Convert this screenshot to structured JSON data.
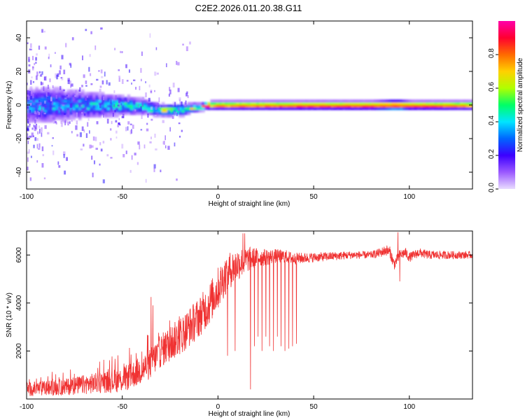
{
  "figure": {
    "title": "C2E2.2026.011.20.38.G11"
  },
  "chart_data": [
    {
      "type": "heatmap",
      "xlabel": "Height of straight line (km)",
      "ylabel": "Frequency (Hz)",
      "xlim": [
        -100,
        133
      ],
      "ylim": [
        -50,
        50
      ],
      "xticks": [
        -100,
        -50,
        0,
        50,
        100
      ],
      "yticks": [
        -40,
        -20,
        0,
        20,
        40
      ],
      "grid": false,
      "colorbar": {
        "label": "Normalized spectral amplitude",
        "range": [
          0,
          1
        ],
        "ticks": [
          "0.0",
          "0.2",
          "0.4",
          "0.6",
          "0.8"
        ],
        "colors": [
          "#e9dcff",
          "#9b59ff",
          "#3c00ff",
          "#0066ff",
          "#00e5ff",
          "#00ff66",
          "#b0ff00",
          "#ffd000",
          "#ff6a00",
          "#ff0030",
          "#ff00aa"
        ]
      },
      "ridge": {
        "x": [
          -100,
          -90,
          -80,
          -70,
          -60,
          -50,
          -40,
          -30,
          -25,
          -20,
          -15,
          -10,
          -5,
          0,
          5,
          10,
          15,
          20,
          30,
          40,
          50,
          60,
          70,
          80,
          90,
          95,
          100,
          105,
          110,
          120,
          133
        ],
        "y": [
          0,
          0,
          0,
          0,
          0,
          0,
          -1,
          -3,
          -3,
          -3,
          -2,
          -1,
          0,
          0,
          0,
          0,
          0,
          0,
          0,
          0,
          0,
          0,
          0,
          0,
          0,
          0,
          0,
          0,
          0,
          0,
          0
        ],
        "amplitude": [
          0.3,
          0.35,
          0.3,
          0.35,
          0.38,
          0.4,
          0.42,
          0.5,
          0.55,
          0.55,
          0.6,
          0.65,
          0.75,
          0.9,
          0.85,
          0.9,
          0.9,
          0.9,
          0.92,
          0.95,
          0.95,
          0.95,
          0.95,
          0.95,
          0.9,
          0.9,
          0.95,
          0.95,
          0.95,
          0.9,
          0.85
        ],
        "halfwidth_hz": [
          9,
          9,
          8,
          7,
          6,
          5,
          4,
          3,
          3,
          3,
          2.5,
          2,
          2,
          2,
          2,
          2,
          2,
          2,
          2,
          2,
          2,
          2,
          2,
          2,
          2.5,
          2.5,
          2,
          2,
          2,
          2,
          2
        ]
      }
    },
    {
      "type": "line",
      "xlabel": "Height of straight line (km)",
      "ylabel": "SNR (10 * v/v)",
      "xlim": [
        -100,
        133
      ],
      "ylim": [
        0,
        7000
      ],
      "xticks": [
        -100,
        -50,
        0,
        50,
        100
      ],
      "yticks": [
        2000,
        4000,
        6000
      ],
      "grid": false,
      "series": [
        {
          "color": "#f03232",
          "envelope": {
            "x": [
              -100,
              -90,
              -80,
              -70,
              -60,
              -50,
              -45,
              -40,
              -35,
              -30,
              -25,
              -20,
              -15,
              -10,
              -5,
              0,
              5,
              10,
              15,
              20,
              25,
              30,
              35,
              40,
              50,
              60,
              70,
              80,
              85,
              88,
              90,
              92,
              95,
              98,
              100,
              105,
              110,
              120,
              133
            ],
            "y": [
              400,
              450,
              500,
              600,
              700,
              800,
              1000,
              1200,
              1500,
              2000,
              2300,
              2600,
              3000,
              3400,
              3900,
              4600,
              5300,
              5600,
              5800,
              5900,
              5900,
              5950,
              5950,
              5850,
              5900,
              5950,
              6000,
              6000,
              6100,
              6200,
              6100,
              5600,
              6000,
              6100,
              5900,
              6100,
              6000,
              6000,
              6000
            ]
          },
          "noise": {
            "x": [
              -100,
              -80,
              -60,
              -40,
              -20,
              0,
              10,
              20,
              30,
              40,
              50,
              80,
              90,
              100,
              133
            ],
            "amplitude": [
              300,
              350,
              450,
              600,
              800,
              900,
              700,
              400,
              300,
              250,
              200,
              150,
              250,
              200,
              150
            ]
          },
          "dropouts": {
            "x": [
              5,
              9,
              13,
              14,
              17,
              19,
              21,
              23,
              25,
              27,
              29,
              31,
              33,
              35,
              37,
              39,
              41
            ],
            "y": [
              1800,
              2000,
              3200,
              6900,
              400,
              2200,
              2600,
              2000,
              2600,
              2200,
              2000,
              2600,
              2200,
              2000,
              2100,
              2200,
              2300
            ]
          },
          "spikes": {
            "x": [
              -35,
              -34,
              13,
              94,
              95
            ],
            "y": [
              4250,
              3900,
              6900,
              6950,
              4900
            ]
          }
        }
      ]
    }
  ]
}
